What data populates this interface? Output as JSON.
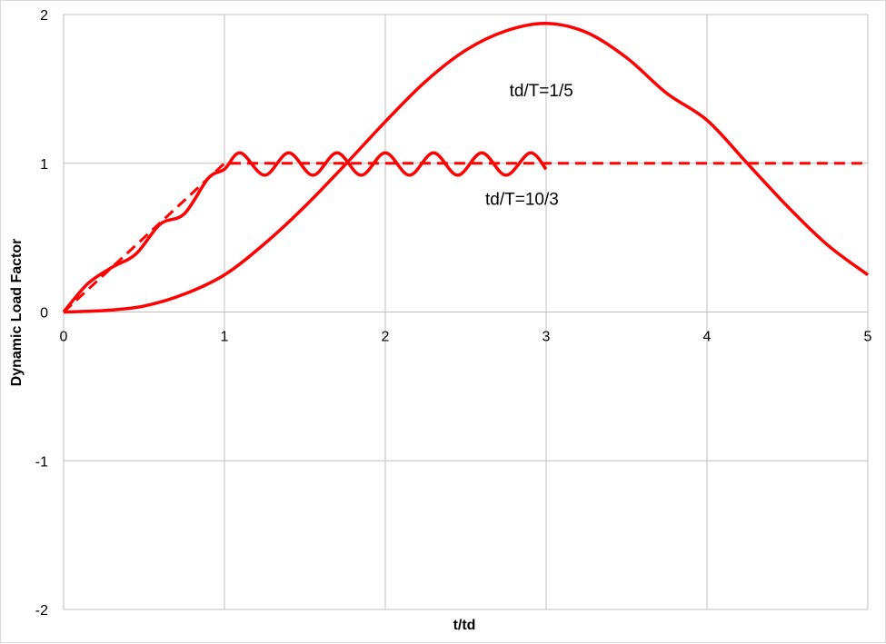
{
  "chart_data": {
    "type": "line",
    "title": "",
    "xlabel": "t/td",
    "ylabel": "Dynamic Load Factor",
    "xlim": [
      0,
      5
    ],
    "ylim": [
      -2,
      2
    ],
    "x_ticks": [
      0,
      1,
      2,
      3,
      4,
      5
    ],
    "y_ticks": [
      -2,
      -1,
      0,
      1,
      2
    ],
    "x_tick_labels": [
      "0",
      "1",
      "2",
      "3",
      "4",
      "5"
    ],
    "y_tick_labels": [
      "-2",
      "-1",
      "0",
      "1",
      "2"
    ],
    "grid": true,
    "legend": "none",
    "line_color": "#ff0000",
    "grid_color": "#bfbfbf",
    "series": [
      {
        "style": "dashed",
        "x": [
          0,
          1,
          5
        ],
        "y": [
          0,
          1,
          1
        ]
      },
      {
        "style": "solid",
        "x": [
          0,
          0.15,
          0.3,
          0.45,
          0.6,
          0.75,
          0.9,
          1.0,
          1.1,
          1.25,
          1.4,
          1.55,
          1.7,
          1.85,
          2.0,
          2.15,
          2.3,
          2.45,
          2.6,
          2.75,
          2.9,
          3.0
        ],
        "y": [
          0,
          0.19,
          0.3,
          0.39,
          0.59,
          0.66,
          0.9,
          0.96,
          1.07,
          0.92,
          1.07,
          0.92,
          1.07,
          0.92,
          1.07,
          0.92,
          1.07,
          0.92,
          1.07,
          0.92,
          1.07,
          0.96
        ]
      },
      {
        "style": "solid",
        "x": [
          0,
          0.25,
          0.5,
          0.75,
          1.0,
          1.25,
          1.5,
          1.75,
          2.0,
          2.25,
          2.5,
          2.75,
          3.0,
          3.25,
          3.5,
          3.75,
          4.0,
          4.25,
          4.5,
          4.75,
          5.0
        ],
        "y": [
          0,
          0.01,
          0.04,
          0.12,
          0.25,
          0.46,
          0.71,
          0.99,
          1.28,
          1.55,
          1.76,
          1.89,
          1.94,
          1.88,
          1.71,
          1.47,
          1.29,
          1.0,
          0.71,
          0.45,
          0.25
        ]
      }
    ],
    "annotations": [
      {
        "text": "td/T=1/5",
        "x": 2.97,
        "y": 1.45
      },
      {
        "text": "td/T=10/3",
        "x": 2.85,
        "y": 0.72
      }
    ]
  }
}
